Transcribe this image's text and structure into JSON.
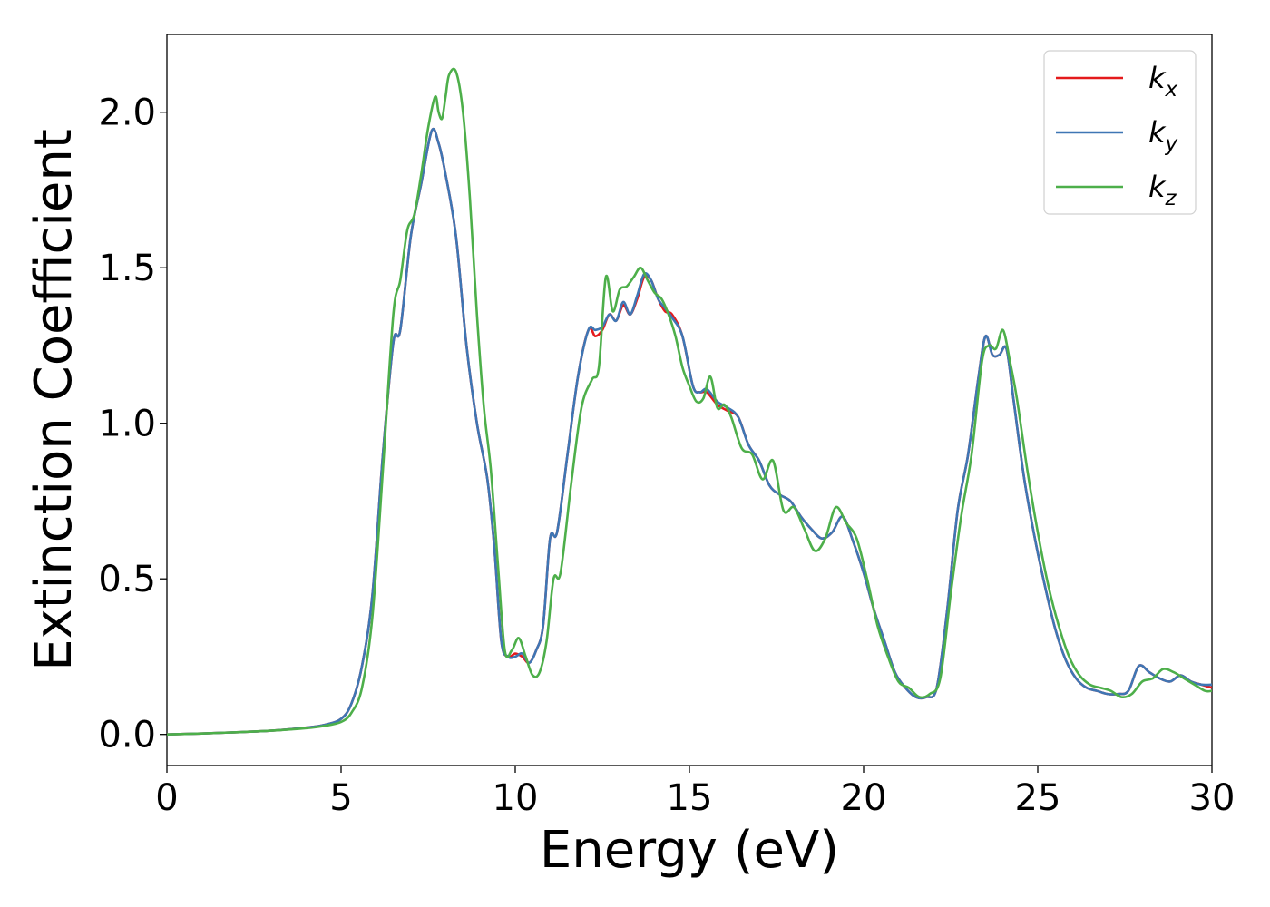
{
  "chart_data": {
    "type": "line",
    "xlabel": "Energy (eV)",
    "ylabel": "Extinction Coefficient",
    "xlim": [
      0,
      30
    ],
    "ylim": [
      -0.1,
      2.25
    ],
    "xticks": [
      0,
      5,
      10,
      15,
      20,
      25,
      30
    ],
    "xtick_labels": [
      "0",
      "5",
      "10",
      "15",
      "20",
      "25",
      "30"
    ],
    "yticks": [
      0.0,
      0.5,
      1.0,
      1.5,
      2.0
    ],
    "ytick_labels": [
      "0.0",
      "0.5",
      "1.0",
      "1.5",
      "2.0"
    ],
    "grid": false,
    "legend_position": "top-right",
    "series": [
      {
        "name": "kx",
        "legend": {
          "base": "k",
          "sub": "x"
        },
        "color": "#e41a1c",
        "x": [
          0,
          1,
          2,
          3,
          4,
          4.5,
          5,
          5.3,
          5.6,
          5.9,
          6.2,
          6.5,
          6.7,
          7.0,
          7.3,
          7.6,
          7.8,
          8.0,
          8.3,
          8.6,
          8.9,
          9.2,
          9.4,
          9.6,
          9.8,
          10.0,
          10.2,
          10.4,
          10.6,
          10.8,
          11.0,
          11.2,
          11.5,
          11.8,
          12.1,
          12.3,
          12.5,
          12.7,
          12.9,
          13.1,
          13.3,
          13.5,
          13.7,
          13.9,
          14.1,
          14.3,
          14.5,
          14.8,
          15.1,
          15.3,
          15.5,
          15.8,
          16.1,
          16.4,
          16.7,
          17.0,
          17.3,
          17.6,
          17.9,
          18.2,
          18.5,
          18.8,
          19.1,
          19.4,
          19.7,
          20.0,
          20.3,
          20.6,
          20.9,
          21.2,
          21.5,
          21.8,
          22.1,
          22.4,
          22.7,
          23.0,
          23.3,
          23.5,
          23.7,
          23.9,
          24.1,
          24.3,
          24.6,
          24.9,
          25.2,
          25.5,
          25.8,
          26.1,
          26.4,
          26.7,
          27.0,
          27.3,
          27.6,
          27.9,
          28.2,
          28.5,
          28.8,
          29.1,
          29.4,
          29.7,
          30.0
        ],
        "y": [
          0.0,
          0.003,
          0.007,
          0.012,
          0.022,
          0.03,
          0.05,
          0.1,
          0.22,
          0.45,
          0.9,
          1.26,
          1.3,
          1.6,
          1.77,
          1.94,
          1.9,
          1.8,
          1.6,
          1.25,
          1.0,
          0.82,
          0.6,
          0.3,
          0.25,
          0.26,
          0.25,
          0.23,
          0.27,
          0.35,
          0.63,
          0.65,
          0.9,
          1.15,
          1.3,
          1.28,
          1.3,
          1.35,
          1.33,
          1.38,
          1.35,
          1.4,
          1.47,
          1.46,
          1.4,
          1.36,
          1.35,
          1.28,
          1.12,
          1.1,
          1.1,
          1.06,
          1.04,
          1.02,
          0.93,
          0.88,
          0.8,
          0.77,
          0.75,
          0.7,
          0.66,
          0.63,
          0.65,
          0.7,
          0.62,
          0.52,
          0.4,
          0.3,
          0.2,
          0.15,
          0.12,
          0.12,
          0.15,
          0.4,
          0.72,
          0.9,
          1.15,
          1.28,
          1.22,
          1.22,
          1.24,
          1.08,
          0.83,
          0.64,
          0.48,
          0.34,
          0.24,
          0.18,
          0.15,
          0.14,
          0.13,
          0.13,
          0.14,
          0.22,
          0.2,
          0.18,
          0.17,
          0.19,
          0.17,
          0.16,
          0.15
        ]
      },
      {
        "name": "ky",
        "legend": {
          "base": "k",
          "sub": "y"
        },
        "color": "#3e76b4",
        "x": [
          0,
          1,
          2,
          3,
          4,
          4.5,
          5,
          5.3,
          5.6,
          5.9,
          6.2,
          6.5,
          6.7,
          7.0,
          7.3,
          7.6,
          7.8,
          8.0,
          8.3,
          8.6,
          8.9,
          9.2,
          9.4,
          9.6,
          9.8,
          10.0,
          10.2,
          10.4,
          10.6,
          10.8,
          11.0,
          11.2,
          11.5,
          11.8,
          12.1,
          12.3,
          12.5,
          12.7,
          12.9,
          13.1,
          13.3,
          13.5,
          13.7,
          13.9,
          14.1,
          14.3,
          14.5,
          14.8,
          15.1,
          15.3,
          15.5,
          15.8,
          16.1,
          16.4,
          16.7,
          17.0,
          17.3,
          17.6,
          17.9,
          18.2,
          18.5,
          18.8,
          19.1,
          19.4,
          19.7,
          20.0,
          20.3,
          20.6,
          20.9,
          21.2,
          21.5,
          21.8,
          22.1,
          22.4,
          22.7,
          23.0,
          23.3,
          23.5,
          23.7,
          23.9,
          24.1,
          24.3,
          24.6,
          24.9,
          25.2,
          25.5,
          25.8,
          26.1,
          26.4,
          26.7,
          27.0,
          27.3,
          27.6,
          27.9,
          28.2,
          28.5,
          28.8,
          29.1,
          29.4,
          29.7,
          30.0
        ],
        "y": [
          0.0,
          0.003,
          0.007,
          0.012,
          0.022,
          0.03,
          0.05,
          0.1,
          0.22,
          0.45,
          0.9,
          1.26,
          1.3,
          1.6,
          1.77,
          1.94,
          1.9,
          1.8,
          1.6,
          1.25,
          1.0,
          0.82,
          0.6,
          0.3,
          0.25,
          0.25,
          0.26,
          0.23,
          0.27,
          0.35,
          0.63,
          0.65,
          0.9,
          1.15,
          1.3,
          1.3,
          1.31,
          1.35,
          1.33,
          1.39,
          1.35,
          1.41,
          1.48,
          1.46,
          1.4,
          1.37,
          1.34,
          1.28,
          1.12,
          1.1,
          1.11,
          1.07,
          1.05,
          1.02,
          0.93,
          0.88,
          0.8,
          0.77,
          0.75,
          0.7,
          0.66,
          0.63,
          0.65,
          0.7,
          0.62,
          0.52,
          0.4,
          0.3,
          0.2,
          0.15,
          0.12,
          0.12,
          0.15,
          0.4,
          0.72,
          0.9,
          1.15,
          1.28,
          1.22,
          1.22,
          1.24,
          1.08,
          0.83,
          0.64,
          0.48,
          0.34,
          0.24,
          0.18,
          0.15,
          0.14,
          0.13,
          0.13,
          0.14,
          0.22,
          0.2,
          0.18,
          0.17,
          0.19,
          0.17,
          0.16,
          0.16
        ]
      },
      {
        "name": "kz",
        "legend": {
          "base": "k",
          "sub": "z"
        },
        "color": "#4daf4a",
        "x": [
          0,
          1,
          2,
          3,
          4,
          4.5,
          5,
          5.3,
          5.6,
          5.9,
          6.2,
          6.5,
          6.7,
          6.9,
          7.1,
          7.3,
          7.5,
          7.7,
          7.8,
          7.9,
          8.0,
          8.1,
          8.3,
          8.5,
          8.7,
          8.9,
          9.1,
          9.3,
          9.5,
          9.7,
          9.9,
          10.1,
          10.3,
          10.5,
          10.7,
          10.9,
          11.1,
          11.3,
          11.6,
          11.9,
          12.2,
          12.4,
          12.6,
          12.8,
          13.0,
          13.2,
          13.4,
          13.6,
          13.8,
          14.0,
          14.2,
          14.4,
          14.6,
          14.8,
          15.0,
          15.2,
          15.4,
          15.6,
          15.8,
          16.0,
          16.2,
          16.5,
          16.8,
          17.1,
          17.4,
          17.7,
          18.0,
          18.3,
          18.6,
          18.9,
          19.2,
          19.5,
          19.8,
          20.1,
          20.4,
          20.7,
          21.0,
          21.3,
          21.6,
          21.9,
          22.2,
          22.5,
          22.8,
          23.1,
          23.4,
          23.6,
          23.8,
          24.0,
          24.2,
          24.4,
          24.7,
          25.0,
          25.3,
          25.6,
          25.9,
          26.2,
          26.5,
          26.8,
          27.1,
          27.4,
          27.7,
          28.0,
          28.3,
          28.6,
          28.9,
          29.2,
          29.5,
          29.8,
          30.0
        ],
        "y": [
          0.0,
          0.003,
          0.007,
          0.012,
          0.02,
          0.027,
          0.04,
          0.07,
          0.15,
          0.38,
          0.85,
          1.35,
          1.46,
          1.62,
          1.67,
          1.8,
          1.95,
          2.05,
          2.0,
          1.98,
          2.05,
          2.12,
          2.13,
          2.0,
          1.72,
          1.35,
          1.05,
          0.85,
          0.55,
          0.27,
          0.27,
          0.31,
          0.25,
          0.19,
          0.2,
          0.3,
          0.5,
          0.52,
          0.8,
          1.05,
          1.14,
          1.18,
          1.47,
          1.36,
          1.43,
          1.44,
          1.47,
          1.5,
          1.46,
          1.42,
          1.4,
          1.35,
          1.28,
          1.18,
          1.12,
          1.07,
          1.08,
          1.15,
          1.05,
          1.06,
          1.02,
          0.92,
          0.9,
          0.82,
          0.88,
          0.72,
          0.73,
          0.66,
          0.59,
          0.63,
          0.73,
          0.68,
          0.63,
          0.5,
          0.35,
          0.25,
          0.17,
          0.15,
          0.12,
          0.13,
          0.18,
          0.45,
          0.7,
          0.9,
          1.2,
          1.25,
          1.24,
          1.3,
          1.2,
          1.08,
          0.85,
          0.65,
          0.48,
          0.35,
          0.25,
          0.19,
          0.16,
          0.15,
          0.14,
          0.12,
          0.13,
          0.17,
          0.18,
          0.21,
          0.2,
          0.18,
          0.16,
          0.14,
          0.14
        ]
      }
    ]
  }
}
